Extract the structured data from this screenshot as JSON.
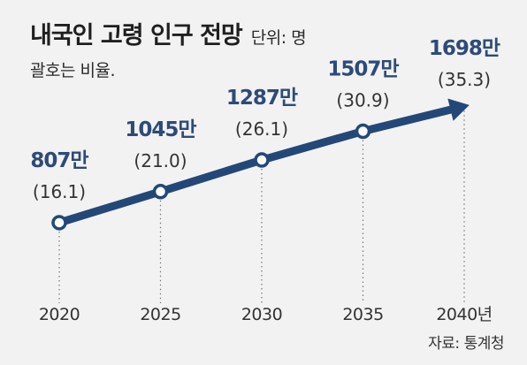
{
  "header": {
    "title": "내국인 고령 인구 전망",
    "unit": "단위: 명",
    "note": "괄호는 비율."
  },
  "source": "자료: 통계청",
  "colors": {
    "line": "#234878",
    "value_text": "#2d4a7a",
    "marker_fill": "#ffffff",
    "background": "#f2f2f2"
  },
  "chart_data": {
    "type": "line",
    "title": "내국인 고령 인구 전망",
    "subtitle": "단위: 명",
    "x": [
      "2020",
      "2025",
      "2030",
      "2035",
      "2040년"
    ],
    "series": [
      {
        "values": [
          8070000,
          10450000,
          12870000,
          15070000,
          16980000
        ],
        "value_labels": [
          "807만",
          "1045만",
          "1287만",
          "1507만",
          "1698만"
        ],
        "ratio_labels": [
          "(16.1)",
          "(21.0)",
          "(26.1)",
          "(30.9)",
          "(35.3)"
        ]
      }
    ],
    "arrow_at_end": true,
    "grid": false
  }
}
